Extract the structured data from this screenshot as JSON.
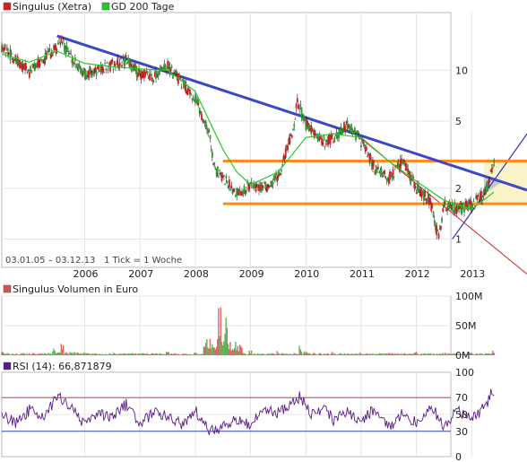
{
  "legend": {
    "main_series": "Singulus (Xetra)",
    "ma_series": "GD 200 Tage",
    "volume_series": "Singulus Volumen in Euro",
    "rsi_series": "RSI (14): 66,871879"
  },
  "footer": {
    "range": "03.01.05 – 03.12.13",
    "tick": "1 Tick = 1 Woche"
  },
  "colors": {
    "price": "#000000",
    "up_candle": "#2ea02e",
    "down_candle": "#d02020",
    "ma200": "#22cc22",
    "downtrend": "#3a48c8",
    "support": "#ff8a1a",
    "thin_trend": "#cc2222",
    "uptrend": "#2233cc",
    "volume_up": "#55bb55",
    "volume_down": "#dd6666",
    "rsi_line": "#5a1a8a",
    "rsi_70": "#dd3333",
    "rsi_30": "#3344aa",
    "legend_main": "#d02020",
    "legend_ma": "#22cc22",
    "legend_vol": "#cc5555",
    "legend_rsi": "#5a1a8a"
  },
  "chart_data": [
    {
      "type": "line",
      "title": "Singulus (Xetra)",
      "y_scale": "log",
      "y_ticks": [
        1,
        2,
        5,
        10
      ],
      "x_ticks": [
        "2006",
        "2007",
        "2008",
        "2009",
        "2010",
        "2011",
        "2012",
        "2013"
      ],
      "series": [
        {
          "name": "Singulus (Xetra)",
          "x": [
            2005.0,
            2005.25,
            2005.5,
            2005.75,
            2006.0,
            2006.05,
            2006.25,
            2006.5,
            2006.75,
            2007.0,
            2007.25,
            2007.5,
            2007.75,
            2008.0,
            2008.25,
            2008.5,
            2008.75,
            2008.85,
            2009.0,
            2009.25,
            2009.5,
            2009.75,
            2010.0,
            2010.25,
            2010.35,
            2010.5,
            2010.75,
            2011.0,
            2011.25,
            2011.5,
            2011.75,
            2012.0,
            2012.25,
            2012.5,
            2012.75,
            2012.9,
            2013.0,
            2013.25,
            2013.5,
            2013.75,
            2013.85,
            2013.92
          ],
          "values": [
            14.0,
            11.5,
            9.8,
            11.8,
            13.5,
            15.5,
            12.0,
            9.5,
            10.0,
            10.8,
            11.5,
            9.5,
            9.2,
            10.5,
            8.5,
            6.8,
            4.2,
            2.6,
            2.3,
            1.9,
            2.1,
            2.0,
            2.4,
            4.2,
            6.6,
            4.8,
            3.8,
            3.9,
            4.8,
            3.8,
            2.6,
            2.3,
            2.9,
            2.0,
            1.7,
            1.0,
            1.6,
            1.5,
            1.6,
            1.9,
            2.5,
            2.9
          ]
        },
        {
          "name": "GD 200 Tage",
          "x": [
            2005.0,
            2005.5,
            2006.0,
            2006.5,
            2007.0,
            2007.5,
            2008.0,
            2008.5,
            2009.0,
            2009.25,
            2009.5,
            2010.0,
            2010.5,
            2011.0,
            2011.5,
            2012.0,
            2012.5,
            2013.0,
            2013.5,
            2013.9
          ],
          "values": [
            12.5,
            11.2,
            13.0,
            11.0,
            10.5,
            10.2,
            10.0,
            7.5,
            3.4,
            2.5,
            2.1,
            2.5,
            4.0,
            4.2,
            4.0,
            2.9,
            2.2,
            1.7,
            1.5,
            1.9
          ]
        }
      ],
      "annotations": [
        {
          "name": "Abwärtstrend",
          "x": [
            2006.0,
            2014.5
          ],
          "values": [
            16.0,
            1.95
          ]
        },
        {
          "name": "Widerstand",
          "x": [
            2009.0,
            2014.5
          ],
          "values": [
            2.9,
            2.9
          ]
        },
        {
          "name": "Unterstützung",
          "x": [
            2009.0,
            2014.5
          ],
          "values": [
            1.62,
            1.62
          ]
        },
        {
          "name": "Abwärtstrend 2011",
          "x": [
            2011.25,
            2014.5
          ],
          "values": [
            4.6,
            0.62
          ]
        },
        {
          "name": "Aufwärtstrend",
          "x": [
            2013.15,
            2014.5
          ],
          "values": [
            1.0,
            4.2
          ]
        }
      ]
    },
    {
      "type": "bar",
      "title": "Singulus Volumen in Euro",
      "y_ticks": [
        "0M",
        "50M",
        "100M"
      ],
      "ylim": [
        0,
        100
      ],
      "series": [
        {
          "name": "Singulus Volumen in Euro",
          "x": [
            2005.0,
            2005.5,
            2005.95,
            2006.1,
            2006.5,
            2007.0,
            2007.5,
            2008.0,
            2008.5,
            2008.95,
            2009.05,
            2009.5,
            2010.0,
            2010.4,
            2010.5,
            2011.0,
            2011.5,
            2012.0,
            2012.5,
            2013.0,
            2013.5,
            2013.9
          ],
          "values": [
            5,
            3,
            12,
            18,
            5,
            4,
            3,
            6,
            4,
            92,
            60,
            8,
            6,
            14,
            6,
            5,
            4,
            4,
            5,
            4,
            4,
            8
          ]
        }
      ]
    },
    {
      "type": "line",
      "title": "RSI (14)",
      "y_ticks": [
        0,
        30,
        50,
        70,
        100
      ],
      "ylim": [
        0,
        100
      ],
      "reference_lines": [
        70,
        30
      ],
      "series": [
        {
          "name": "RSI (14)",
          "x": [
            2005.0,
            2005.25,
            2005.5,
            2005.75,
            2006.0,
            2006.25,
            2006.5,
            2006.75,
            2007.0,
            2007.25,
            2007.5,
            2007.75,
            2008.0,
            2008.25,
            2008.5,
            2008.75,
            2009.0,
            2009.25,
            2009.5,
            2009.75,
            2010.0,
            2010.25,
            2010.4,
            2010.6,
            2010.85,
            2011.0,
            2011.25,
            2011.5,
            2011.75,
            2012.0,
            2012.25,
            2012.5,
            2012.75,
            2013.0,
            2013.25,
            2013.5,
            2013.75,
            2013.85,
            2013.92
          ],
          "values": [
            50,
            40,
            55,
            45,
            72,
            60,
            38,
            50,
            45,
            62,
            40,
            52,
            48,
            38,
            55,
            30,
            35,
            45,
            38,
            55,
            52,
            62,
            72,
            50,
            60,
            42,
            55,
            40,
            58,
            34,
            52,
            40,
            62,
            35,
            55,
            45,
            60,
            75,
            67
          ]
        }
      ]
    }
  ]
}
